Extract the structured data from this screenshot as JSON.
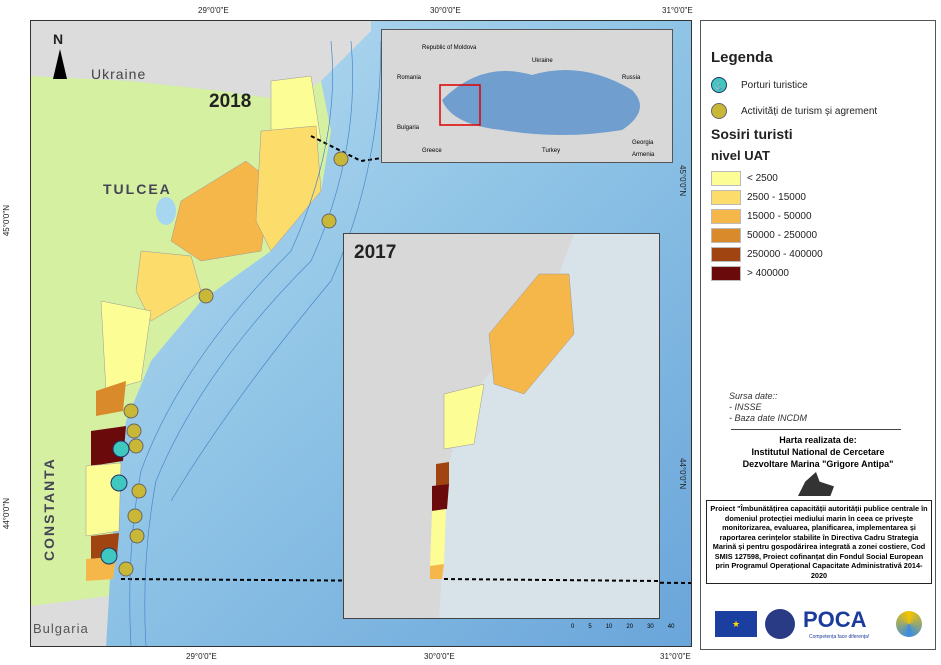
{
  "coordinates": {
    "top": [
      "29°0'0\"E",
      "30°0'0\"E",
      "31°0'0\"E"
    ],
    "bottom": [
      "29°0'0\"E",
      "30°0'0\"E",
      "31°0'0\"E"
    ],
    "left": [
      "45°0'0\"N",
      "44°0'0\"N"
    ],
    "right": [
      "45°0'0\"N",
      "44°0'0\"N"
    ]
  },
  "map": {
    "north": "N",
    "year_main": "2018",
    "year_inset": "2017",
    "labels": {
      "ukraine": "Ukraine",
      "tulcea": "TULCEA",
      "constanta": "CONSTANTA",
      "bulgaria": "Bulgaria"
    },
    "overview_labels": [
      "Republic of Moldova",
      "Ukraine",
      "Russia",
      "Romania",
      "Bulgaria",
      "Georgia",
      "Greece",
      "Turkey",
      "Armenia"
    ],
    "scale_ticks": [
      "0",
      "5",
      "10",
      "20",
      "30",
      "40"
    ]
  },
  "legend": {
    "title": "Legenda",
    "ports": "Porturi turistice",
    "activities": "Activități de turism și agrement",
    "subtitle1": "Sosiri turisti",
    "subtitle2": "nivel UAT",
    "classes": [
      {
        "label": "< 2500",
        "color": "#fdfd96"
      },
      {
        "label": "2500  - 15000",
        "color": "#fcdc6a"
      },
      {
        "label": "15000  - 50000",
        "color": "#f6b74a"
      },
      {
        "label": "50000  - 250000",
        "color": "#d98a2b"
      },
      {
        "label": "250000 - 400000",
        "color": "#a04512"
      },
      {
        "label": "> 400000",
        "color": "#6b0a0a"
      }
    ]
  },
  "source": {
    "title": "Sursa date::",
    "items": [
      "- INSSE",
      "- Baza date INCDM"
    ]
  },
  "credits": {
    "line1": "Harta realizata de:",
    "line2": "Institutul National de Cercetare",
    "line3": "Dezvoltare Marina \"Grigore Antipa\"",
    "logo": "INCDM"
  },
  "project": "Proiect \"Îmbunătățirea capacității autorității publice centrale în domeniul protecției mediului marin în ceea ce privește monitorizarea, evaluarea, planificarea, implementarea și raportarea cerințelor stabilite în Directiva Cadru Strategia Marină și pentru gospodărirea integrată a zonei costiere, Cod SMIS 127598, Proiect cofinanțat din Fondul Social European prin Programul Operațional Capacitate Administrativă 2014-2020",
  "logos": {
    "eu": "UNIUNEA EUROPEANĂ",
    "poca": "POCA",
    "poca_tag": "Competența face diferența!"
  }
}
